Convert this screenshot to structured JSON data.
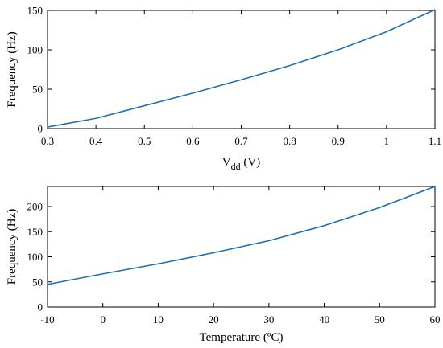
{
  "chart_data": [
    {
      "type": "line",
      "xlabel": "V",
      "xlabel_sub": "dd",
      "xlabel_unit": " (V)",
      "ylabel": "Frequency (Hz)",
      "xlim": [
        0.3,
        1.1
      ],
      "ylim": [
        0,
        150
      ],
      "xticks": [
        0.3,
        0.4,
        0.5,
        0.6,
        0.7,
        0.8,
        0.9,
        1,
        1.1
      ],
      "yticks": [
        0,
        50,
        100,
        150
      ],
      "grid": false,
      "series": [
        {
          "color": "#1f6fb0",
          "x": [
            0.3,
            0.4,
            0.5,
            0.6,
            0.7,
            0.8,
            0.9,
            1.0,
            1.1
          ],
          "y": [
            2,
            13,
            29,
            45,
            62,
            80,
            100,
            123,
            151
          ]
        }
      ]
    },
    {
      "type": "line",
      "xlabel": "Temperature (ºC)",
      "ylabel": "Frequency (Hz)",
      "xlim": [
        -10,
        60
      ],
      "ylim": [
        0,
        240
      ],
      "xticks": [
        -10,
        0,
        10,
        20,
        30,
        40,
        50,
        60
      ],
      "yticks": [
        0,
        50,
        100,
        150,
        200
      ],
      "grid": false,
      "series": [
        {
          "color": "#1f6fb0",
          "x": [
            -10,
            0,
            10,
            20,
            30,
            40,
            50,
            60
          ],
          "y": [
            45,
            66,
            86,
            108,
            132,
            162,
            198,
            240
          ]
        }
      ]
    }
  ]
}
